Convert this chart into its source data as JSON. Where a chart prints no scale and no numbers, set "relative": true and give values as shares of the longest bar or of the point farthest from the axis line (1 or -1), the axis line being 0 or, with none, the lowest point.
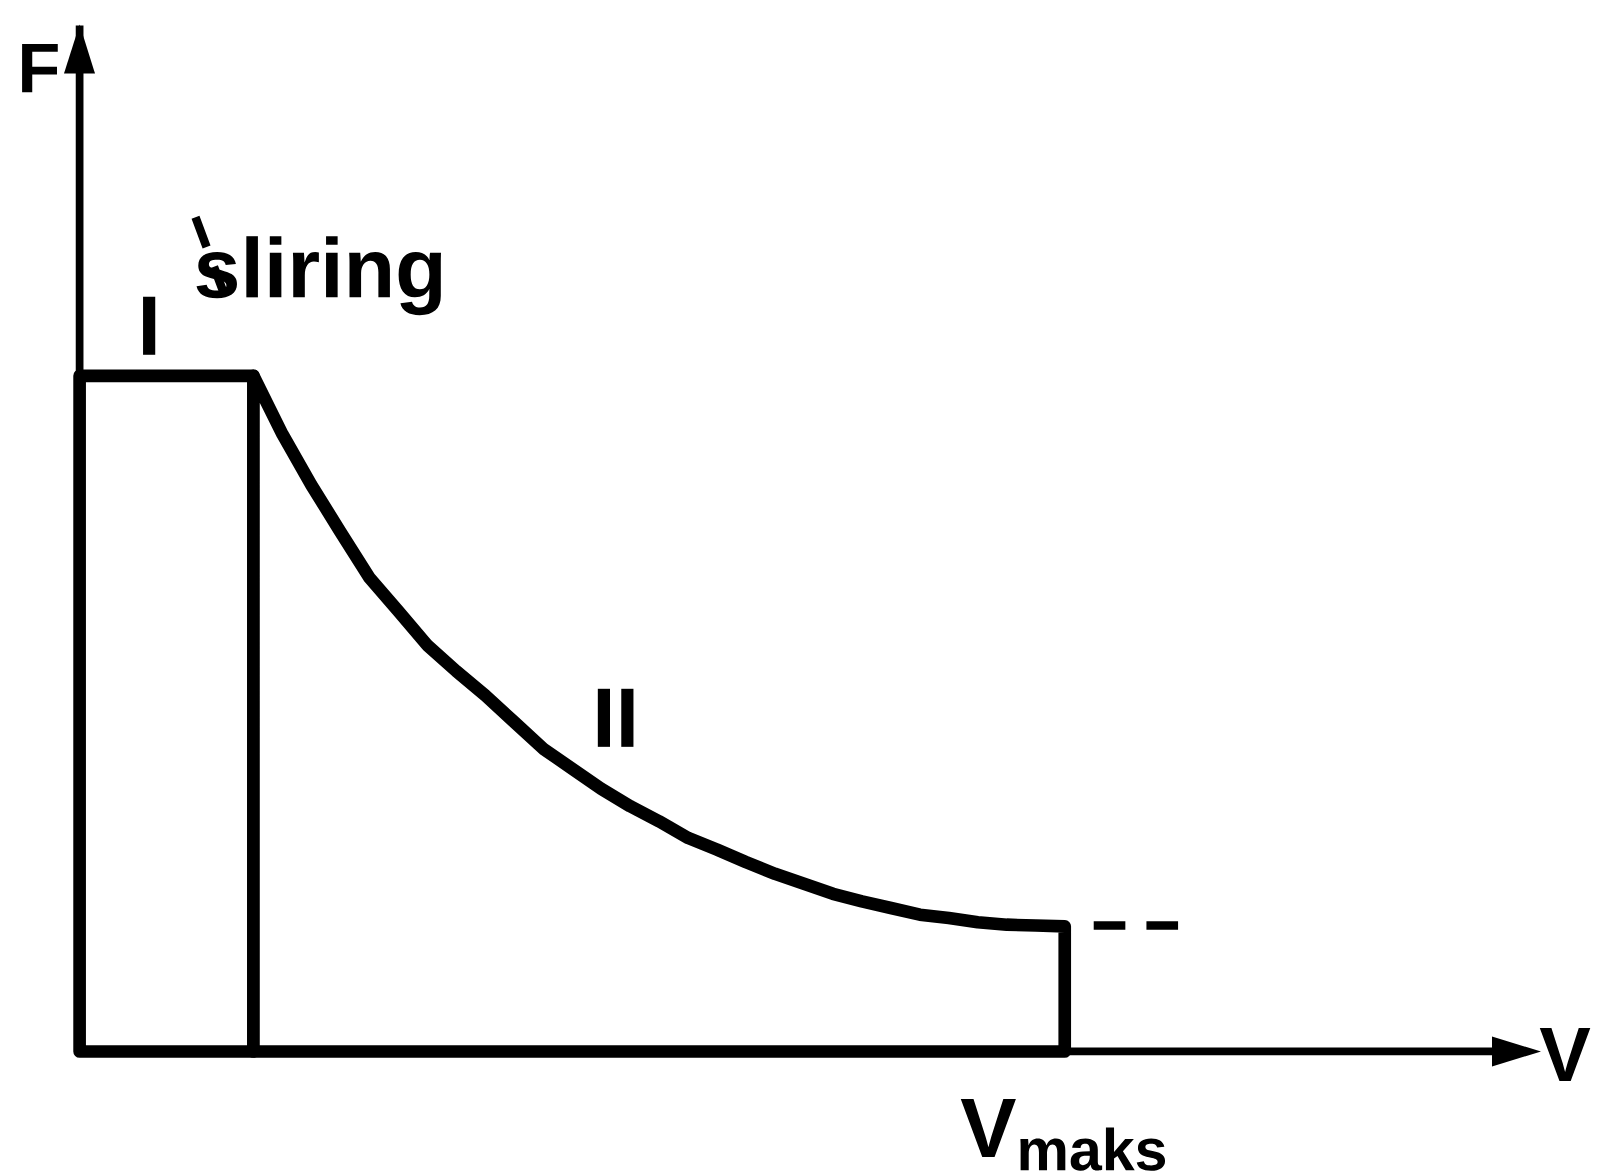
{
  "chart_data": {
    "type": "line",
    "relative": true,
    "xlabel": "V",
    "ylabel": "F",
    "categories": [
      null,
      null,
      null,
      null,
      null,
      null,
      null,
      null,
      null,
      null,
      null,
      null,
      null,
      null,
      null,
      null,
      null,
      null,
      null,
      null,
      null,
      null,
      null,
      null,
      null,
      null,
      null,
      null,
      null,
      null,
      null,
      null,
      null,
      null,
      null,
      null,
      null,
      null,
      null
    ],
    "series": [
      {
        "type": "area",
        "color": "#000000",
        "values": [
          0.81,
          0.81,
          0.81,
          0.81,
          0.81,
          0.81,
          0.81,
          null,
          null,
          null,
          null,
          null,
          null,
          null,
          null,
          null,
          null,
          null,
          null,
          null,
          null,
          null,
          null,
          null,
          null,
          null,
          null,
          null,
          null,
          null,
          null,
          null,
          null,
          null,
          null,
          null,
          null,
          null,
          null
        ]
      },
      {
        "type": "area",
        "color": "#000000",
        "values": [
          null,
          null,
          null,
          null,
          null,
          null,
          0.81,
          0.74,
          0.679,
          0.623,
          0.568,
          0.528,
          0.487,
          0.456,
          0.427,
          0.395,
          0.363,
          0.339,
          0.315,
          0.294,
          0.276,
          0.256,
          0.242,
          0.227,
          0.213,
          0.201,
          0.189,
          0.18,
          0.172,
          0.164,
          0.16,
          0.155,
          0.152,
          0.151,
          0.15,
          null,
          null,
          null,
          null
        ]
      },
      {
        "color": "#000000",
        "line_style": "dashed",
        "values": [
          null,
          null,
          null,
          null,
          1.0,
          0.907,
          null,
          null,
          null,
          null,
          null,
          null,
          null,
          null,
          null,
          null,
          null,
          null,
          null,
          null,
          null,
          null,
          null,
          null,
          null,
          null,
          null,
          null,
          null,
          null,
          null,
          null,
          null,
          null,
          null,
          null,
          null,
          null,
          null
        ]
      },
      {
        "color": "#000000",
        "line_style": "dashed",
        "values": [
          null,
          null,
          null,
          null,
          null,
          null,
          null,
          null,
          null,
          null,
          null,
          null,
          null,
          null,
          null,
          null,
          null,
          null,
          null,
          null,
          null,
          null,
          null,
          null,
          null,
          null,
          null,
          null,
          null,
          null,
          null,
          null,
          null,
          null,
          null,
          0.151,
          0.151,
          0.151,
          0.151
        ]
      }
    ],
    "annotations": [
      "sliring",
      "I",
      "II",
      "V$_{maks}$"
    ]
  }
}
